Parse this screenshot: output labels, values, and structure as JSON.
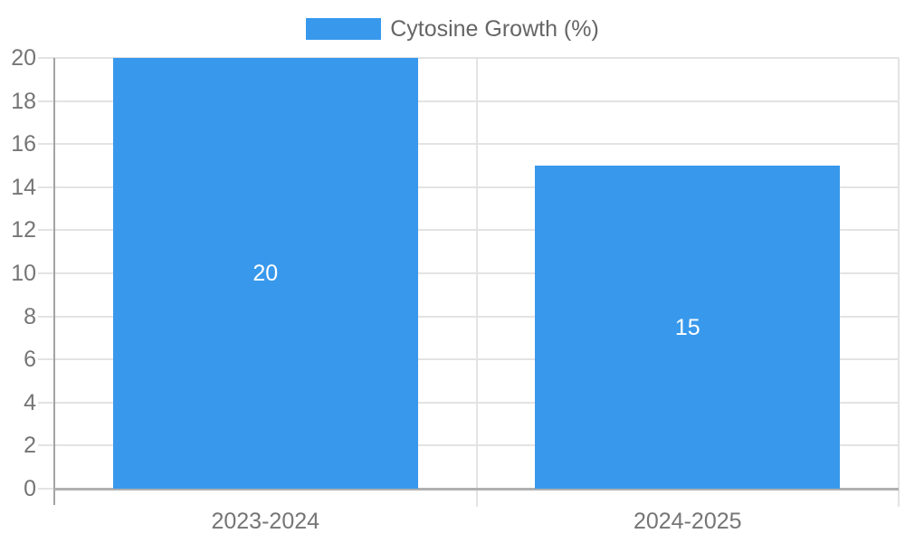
{
  "chart_data": {
    "type": "bar",
    "categories": [
      "2023-2024",
      "2024-2025"
    ],
    "series": [
      {
        "name": "Cytosine Growth (%)",
        "values": [
          20,
          15
        ]
      }
    ],
    "bar_value_labels": [
      "20",
      "15"
    ],
    "yticks": [
      0,
      2,
      4,
      6,
      8,
      10,
      12,
      14,
      16,
      18,
      20
    ],
    "ylim": [
      0,
      20
    ],
    "grid": true,
    "legend_position": "top-center",
    "colors": {
      "bar": "#3899EC",
      "gridline": "#e3e3e3",
      "axis_line": "#a3a3a3",
      "baseline": "#b0b0b0",
      "tick_label": "#757575",
      "legend_text": "#666666",
      "bar_label": "#ffffff",
      "background": "#ffffff"
    }
  }
}
